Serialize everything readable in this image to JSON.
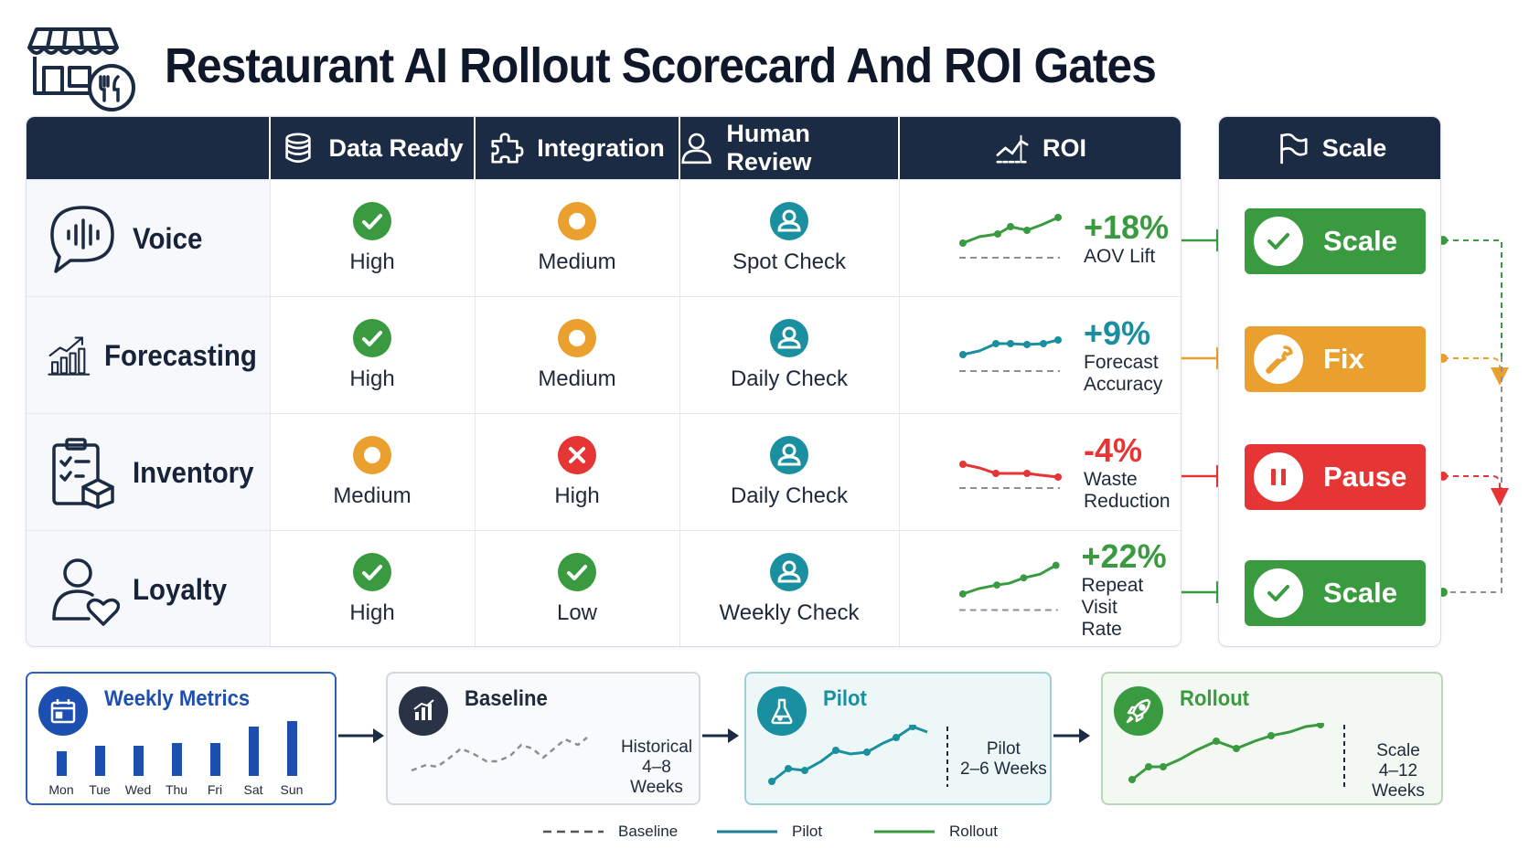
{
  "title": "Restaurant AI Rollout Scorecard And ROI Gates",
  "headers": {
    "data_ready": "Data Ready",
    "integration": "Integration",
    "human_review": "Human Review",
    "roi": "ROI",
    "scale": "Scale"
  },
  "rows": [
    {
      "name": "Voice",
      "data_ready": "High",
      "integration": "Medium",
      "human_review": "Spot Check",
      "roi_value": "+18%",
      "roi_label_1": "AOV Lift",
      "roi_label_2": "",
      "action": "Scale"
    },
    {
      "name": "Forecasting",
      "data_ready": "High",
      "integration": "Medium",
      "human_review": "Daily Check",
      "roi_value": "+9%",
      "roi_label_1": "Forecast",
      "roi_label_2": "Accuracy",
      "action": "Fix"
    },
    {
      "name": "Inventory",
      "data_ready": "Medium",
      "integration": "High",
      "human_review": "Daily Check",
      "roi_value": "-4%",
      "roi_label_1": "Waste",
      "roi_label_2": "Reduction",
      "action": "Pause"
    },
    {
      "name": "Loyalty",
      "data_ready": "High",
      "integration": "Low",
      "human_review": "Weekly Check",
      "roi_value": "+22%",
      "roi_label_1": "Repeat Visit",
      "roi_label_2": "Rate",
      "action": "Scale"
    }
  ],
  "weekly": {
    "title": "Weekly Metrics",
    "days": [
      "Mon",
      "Tue",
      "Wed",
      "Thu",
      "Fri",
      "Sat",
      "Sun"
    ],
    "values": [
      0.45,
      0.55,
      0.55,
      0.6,
      0.6,
      0.9,
      1.0
    ]
  },
  "stages": {
    "baseline": {
      "title": "Baseline",
      "note_1": "Historical",
      "note_2": "4–8 Weeks"
    },
    "pilot": {
      "title": "Pilot",
      "note_1": "Pilot",
      "note_2": "2–6 Weeks"
    },
    "rollout": {
      "title": "Rollout",
      "note_1": "Scale",
      "note_2": "4–12 Weeks"
    }
  },
  "legend": {
    "baseline": "Baseline",
    "pilot": "Pilot",
    "rollout": "Rollout"
  },
  "colors": {
    "navy": "#1c2b44",
    "green": "#3a9a40",
    "orange": "#eaa02f",
    "red": "#e53535",
    "teal": "#1a8fa0",
    "blue": "#1c4fb0",
    "gray": "#8a8f98"
  }
}
